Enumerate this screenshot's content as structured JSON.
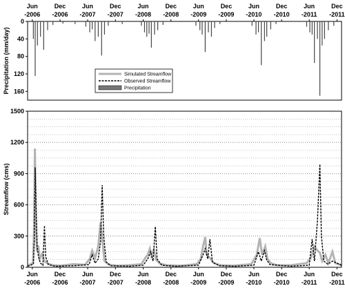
{
  "chart_data": [
    {
      "type": "bar",
      "ylabel": "Precipitation (mm/day)",
      "y_inverted": true,
      "ylim": [
        0,
        180
      ],
      "yticks": [
        0,
        40,
        80,
        120,
        160
      ],
      "ytick_labels": [
        "0",
        "40",
        "80",
        "120",
        "160"
      ],
      "grid": false,
      "series": [
        {
          "name": "Precipitation",
          "color": "#444444",
          "points": [
            {
              "x": "2006-06-08",
              "y": 40
            },
            {
              "x": "2006-06-20",
              "y": 125
            },
            {
              "x": "2006-07-05",
              "y": 55
            },
            {
              "x": "2006-07-25",
              "y": 35
            },
            {
              "x": "2006-08-15",
              "y": 65
            },
            {
              "x": "2006-09-10",
              "y": 20
            },
            {
              "x": "2006-10-15",
              "y": 8
            },
            {
              "x": "2006-12-20",
              "y": 5
            },
            {
              "x": "2007-03-10",
              "y": 6
            },
            {
              "x": "2007-05-20",
              "y": 12
            },
            {
              "x": "2007-06-15",
              "y": 25
            },
            {
              "x": "2007-07-01",
              "y": 18
            },
            {
              "x": "2007-07-20",
              "y": 45
            },
            {
              "x": "2007-08-10",
              "y": 35
            },
            {
              "x": "2007-09-01",
              "y": 78
            },
            {
              "x": "2007-09-20",
              "y": 30
            },
            {
              "x": "2007-10-15",
              "y": 10
            },
            {
              "x": "2008-01-15",
              "y": 6
            },
            {
              "x": "2008-05-20",
              "y": 10
            },
            {
              "x": "2008-06-10",
              "y": 25
            },
            {
              "x": "2008-06-25",
              "y": 35
            },
            {
              "x": "2008-07-10",
              "y": 28
            },
            {
              "x": "2008-07-25",
              "y": 60
            },
            {
              "x": "2008-08-15",
              "y": 30
            },
            {
              "x": "2008-09-05",
              "y": 20
            },
            {
              "x": "2008-10-10",
              "y": 8
            },
            {
              "x": "2009-05-15",
              "y": 10
            },
            {
              "x": "2009-06-10",
              "y": 20
            },
            {
              "x": "2009-06-25",
              "y": 30
            },
            {
              "x": "2009-07-15",
              "y": 70
            },
            {
              "x": "2009-08-05",
              "y": 25
            },
            {
              "x": "2009-08-25",
              "y": 35
            },
            {
              "x": "2009-09-15",
              "y": 15
            },
            {
              "x": "2009-10-20",
              "y": 6
            },
            {
              "x": "2010-05-20",
              "y": 10
            },
            {
              "x": "2010-06-15",
              "y": 30
            },
            {
              "x": "2010-07-01",
              "y": 25
            },
            {
              "x": "2010-07-20",
              "y": 100
            },
            {
              "x": "2010-08-10",
              "y": 45
            },
            {
              "x": "2010-08-25",
              "y": 35
            },
            {
              "x": "2010-09-20",
              "y": 18
            },
            {
              "x": "2010-10-25",
              "y": 6
            },
            {
              "x": "2011-05-15",
              "y": 12
            },
            {
              "x": "2011-06-05",
              "y": 25
            },
            {
              "x": "2011-06-20",
              "y": 30
            },
            {
              "x": "2011-07-05",
              "y": 95
            },
            {
              "x": "2011-07-25",
              "y": 40
            },
            {
              "x": "2011-08-10",
              "y": 170
            },
            {
              "x": "2011-08-25",
              "y": 55
            },
            {
              "x": "2011-09-10",
              "y": 40
            },
            {
              "x": "2011-10-05",
              "y": 20
            },
            {
              "x": "2011-11-10",
              "y": 10
            }
          ]
        }
      ],
      "legend": {
        "placement": "lower-center",
        "entries": [
          "Simulated Streamflow",
          "Observed Streamflow",
          "Precipitation"
        ]
      }
    },
    {
      "type": "line",
      "ylabel": "Streamflow (cms)",
      "ylim": [
        0,
        1500
      ],
      "yticks": [
        0,
        300,
        600,
        900,
        1200,
        1500
      ],
      "ytick_labels": [
        "0",
        "300",
        "600",
        "900",
        "1200",
        "1500"
      ],
      "grid": true,
      "grid_style": "dotted-horizontal",
      "xticks": [
        {
          "date": "2006-06-01",
          "top": "Jun",
          "bottom": "-2006"
        },
        {
          "date": "2006-12-01",
          "top": "Dec",
          "bottom": "-2006"
        },
        {
          "date": "2007-06-01",
          "top": "Jun",
          "bottom": "-2007"
        },
        {
          "date": "2007-12-01",
          "top": "Dec",
          "bottom": "-2007"
        },
        {
          "date": "2008-06-01",
          "top": "Jun",
          "bottom": "-2008"
        },
        {
          "date": "2008-12-01",
          "top": "Dec",
          "bottom": "-2008"
        },
        {
          "date": "2009-06-01",
          "top": "Jun",
          "bottom": "-2009"
        },
        {
          "date": "2009-12-01",
          "top": "Dec",
          "bottom": "-2009"
        },
        {
          "date": "2010-06-01",
          "top": "Jun",
          "bottom": "-2010"
        },
        {
          "date": "2010-12-01",
          "top": "Dec",
          "bottom": "-2010"
        },
        {
          "date": "2011-06-01",
          "top": "Jun",
          "bottom": "-2011"
        },
        {
          "date": "2011-12-01",
          "top": "Dec",
          "bottom": "-2011"
        }
      ],
      "xlim": [
        "2006-05-01",
        "2011-12-31"
      ],
      "series": [
        {
          "name": "Simulated Streamflow",
          "color": "#b3b3b3",
          "style": "solid",
          "points": [
            {
              "x": "2006-05-01",
              "y": 15
            },
            {
              "x": "2006-06-05",
              "y": 40
            },
            {
              "x": "2006-06-12",
              "y": 300
            },
            {
              "x": "2006-06-18",
              "y": 1140
            },
            {
              "x": "2006-06-24",
              "y": 500
            },
            {
              "x": "2006-07-01",
              "y": 150
            },
            {
              "x": "2006-07-10",
              "y": 210
            },
            {
              "x": "2006-07-20",
              "y": 80
            },
            {
              "x": "2006-08-05",
              "y": 130
            },
            {
              "x": "2006-08-20",
              "y": 60
            },
            {
              "x": "2006-09-10",
              "y": 35
            },
            {
              "x": "2006-10-15",
              "y": 20
            },
            {
              "x": "2006-12-01",
              "y": 15
            },
            {
              "x": "2007-03-01",
              "y": 30
            },
            {
              "x": "2007-05-15",
              "y": 25
            },
            {
              "x": "2007-06-15",
              "y": 80
            },
            {
              "x": "2007-07-01",
              "y": 160
            },
            {
              "x": "2007-07-20",
              "y": 90
            },
            {
              "x": "2007-08-10",
              "y": 200
            },
            {
              "x": "2007-08-25",
              "y": 430
            },
            {
              "x": "2007-09-05",
              "y": 280
            },
            {
              "x": "2007-09-20",
              "y": 60
            },
            {
              "x": "2007-10-20",
              "y": 25
            },
            {
              "x": "2007-12-15",
              "y": 15
            },
            {
              "x": "2008-03-01",
              "y": 20
            },
            {
              "x": "2008-05-20",
              "y": 30
            },
            {
              "x": "2008-06-15",
              "y": 90
            },
            {
              "x": "2008-07-01",
              "y": 120
            },
            {
              "x": "2008-07-15",
              "y": 180
            },
            {
              "x": "2008-07-25",
              "y": 110
            },
            {
              "x": "2008-08-10",
              "y": 170
            },
            {
              "x": "2008-08-25",
              "y": 70
            },
            {
              "x": "2008-09-20",
              "y": 35
            },
            {
              "x": "2008-11-01",
              "y": 20
            },
            {
              "x": "2009-02-01",
              "y": 15
            },
            {
              "x": "2009-05-20",
              "y": 30
            },
            {
              "x": "2009-06-15",
              "y": 80
            },
            {
              "x": "2009-07-01",
              "y": 200
            },
            {
              "x": "2009-07-15",
              "y": 290
            },
            {
              "x": "2009-07-25",
              "y": 120
            },
            {
              "x": "2009-08-15",
              "y": 90
            },
            {
              "x": "2009-09-10",
              "y": 40
            },
            {
              "x": "2009-10-25",
              "y": 20
            },
            {
              "x": "2010-01-15",
              "y": 15
            },
            {
              "x": "2010-05-15",
              "y": 30
            },
            {
              "x": "2010-06-20",
              "y": 120
            },
            {
              "x": "2010-07-10",
              "y": 280
            },
            {
              "x": "2010-07-25",
              "y": 120
            },
            {
              "x": "2010-08-15",
              "y": 200
            },
            {
              "x": "2010-08-30",
              "y": 80
            },
            {
              "x": "2010-09-20",
              "y": 40
            },
            {
              "x": "2010-11-01",
              "y": 20
            },
            {
              "x": "2011-02-01",
              "y": 20
            },
            {
              "x": "2011-05-15",
              "y": 40
            },
            {
              "x": "2011-06-15",
              "y": 100
            },
            {
              "x": "2011-07-05",
              "y": 200
            },
            {
              "x": "2011-07-25",
              "y": 160
            },
            {
              "x": "2011-08-10",
              "y": 140
            },
            {
              "x": "2011-08-25",
              "y": 60
            },
            {
              "x": "2011-09-15",
              "y": 120
            },
            {
              "x": "2011-10-05",
              "y": 40
            },
            {
              "x": "2011-11-01",
              "y": 150
            },
            {
              "x": "2011-11-20",
              "y": 40
            },
            {
              "x": "2011-12-31",
              "y": 20
            }
          ]
        },
        {
          "name": "Observed Streamflow",
          "color": "#000000",
          "style": "dashed",
          "points": [
            {
              "x": "2006-05-01",
              "y": 10
            },
            {
              "x": "2006-06-08",
              "y": 30
            },
            {
              "x": "2006-06-14",
              "y": 250
            },
            {
              "x": "2006-06-20",
              "y": 960
            },
            {
              "x": "2006-06-26",
              "y": 600
            },
            {
              "x": "2006-07-03",
              "y": 200
            },
            {
              "x": "2006-07-12",
              "y": 100
            },
            {
              "x": "2006-07-25",
              "y": 40
            },
            {
              "x": "2006-08-10",
              "y": 20
            },
            {
              "x": "2006-08-20",
              "y": 400
            },
            {
              "x": "2006-08-28",
              "y": 100
            },
            {
              "x": "2006-09-15",
              "y": 25
            },
            {
              "x": "2006-11-01",
              "y": 10
            },
            {
              "x": "2007-03-01",
              "y": 15
            },
            {
              "x": "2007-06-10",
              "y": 25
            },
            {
              "x": "2007-07-01",
              "y": 120
            },
            {
              "x": "2007-07-20",
              "y": 40
            },
            {
              "x": "2007-08-10",
              "y": 80
            },
            {
              "x": "2007-08-25",
              "y": 250
            },
            {
              "x": "2007-09-05",
              "y": 790
            },
            {
              "x": "2007-09-15",
              "y": 300
            },
            {
              "x": "2007-10-01",
              "y": 50
            },
            {
              "x": "2007-11-01",
              "y": 15
            },
            {
              "x": "2008-03-01",
              "y": 10
            },
            {
              "x": "2008-06-01",
              "y": 20
            },
            {
              "x": "2008-07-01",
              "y": 80
            },
            {
              "x": "2008-07-20",
              "y": 150
            },
            {
              "x": "2008-08-05",
              "y": 60
            },
            {
              "x": "2008-08-20",
              "y": 390
            },
            {
              "x": "2008-09-01",
              "y": 80
            },
            {
              "x": "2008-10-01",
              "y": 20
            },
            {
              "x": "2009-01-01",
              "y": 10
            },
            {
              "x": "2009-06-01",
              "y": 20
            },
            {
              "x": "2009-07-01",
              "y": 120
            },
            {
              "x": "2009-07-15",
              "y": 180
            },
            {
              "x": "2009-08-01",
              "y": 80
            },
            {
              "x": "2009-08-15",
              "y": 270
            },
            {
              "x": "2009-09-01",
              "y": 50
            },
            {
              "x": "2009-10-15",
              "y": 15
            },
            {
              "x": "2010-02-01",
              "y": 10
            },
            {
              "x": "2010-06-01",
              "y": 20
            },
            {
              "x": "2010-07-01",
              "y": 150
            },
            {
              "x": "2010-07-20",
              "y": 60
            },
            {
              "x": "2010-08-10",
              "y": 160
            },
            {
              "x": "2010-08-25",
              "y": 70
            },
            {
              "x": "2010-09-15",
              "y": 25
            },
            {
              "x": "2011-02-01",
              "y": 10
            },
            {
              "x": "2011-06-01",
              "y": 20
            },
            {
              "x": "2011-06-20",
              "y": 270
            },
            {
              "x": "2011-07-05",
              "y": 60
            },
            {
              "x": "2011-07-25",
              "y": 450
            },
            {
              "x": "2011-08-10",
              "y": 990
            },
            {
              "x": "2011-08-20",
              "y": 300
            },
            {
              "x": "2011-09-05",
              "y": 60
            },
            {
              "x": "2011-10-01",
              "y": 30
            },
            {
              "x": "2011-11-01",
              "y": 60
            },
            {
              "x": "2011-12-31",
              "y": 20
            }
          ]
        }
      ]
    }
  ]
}
